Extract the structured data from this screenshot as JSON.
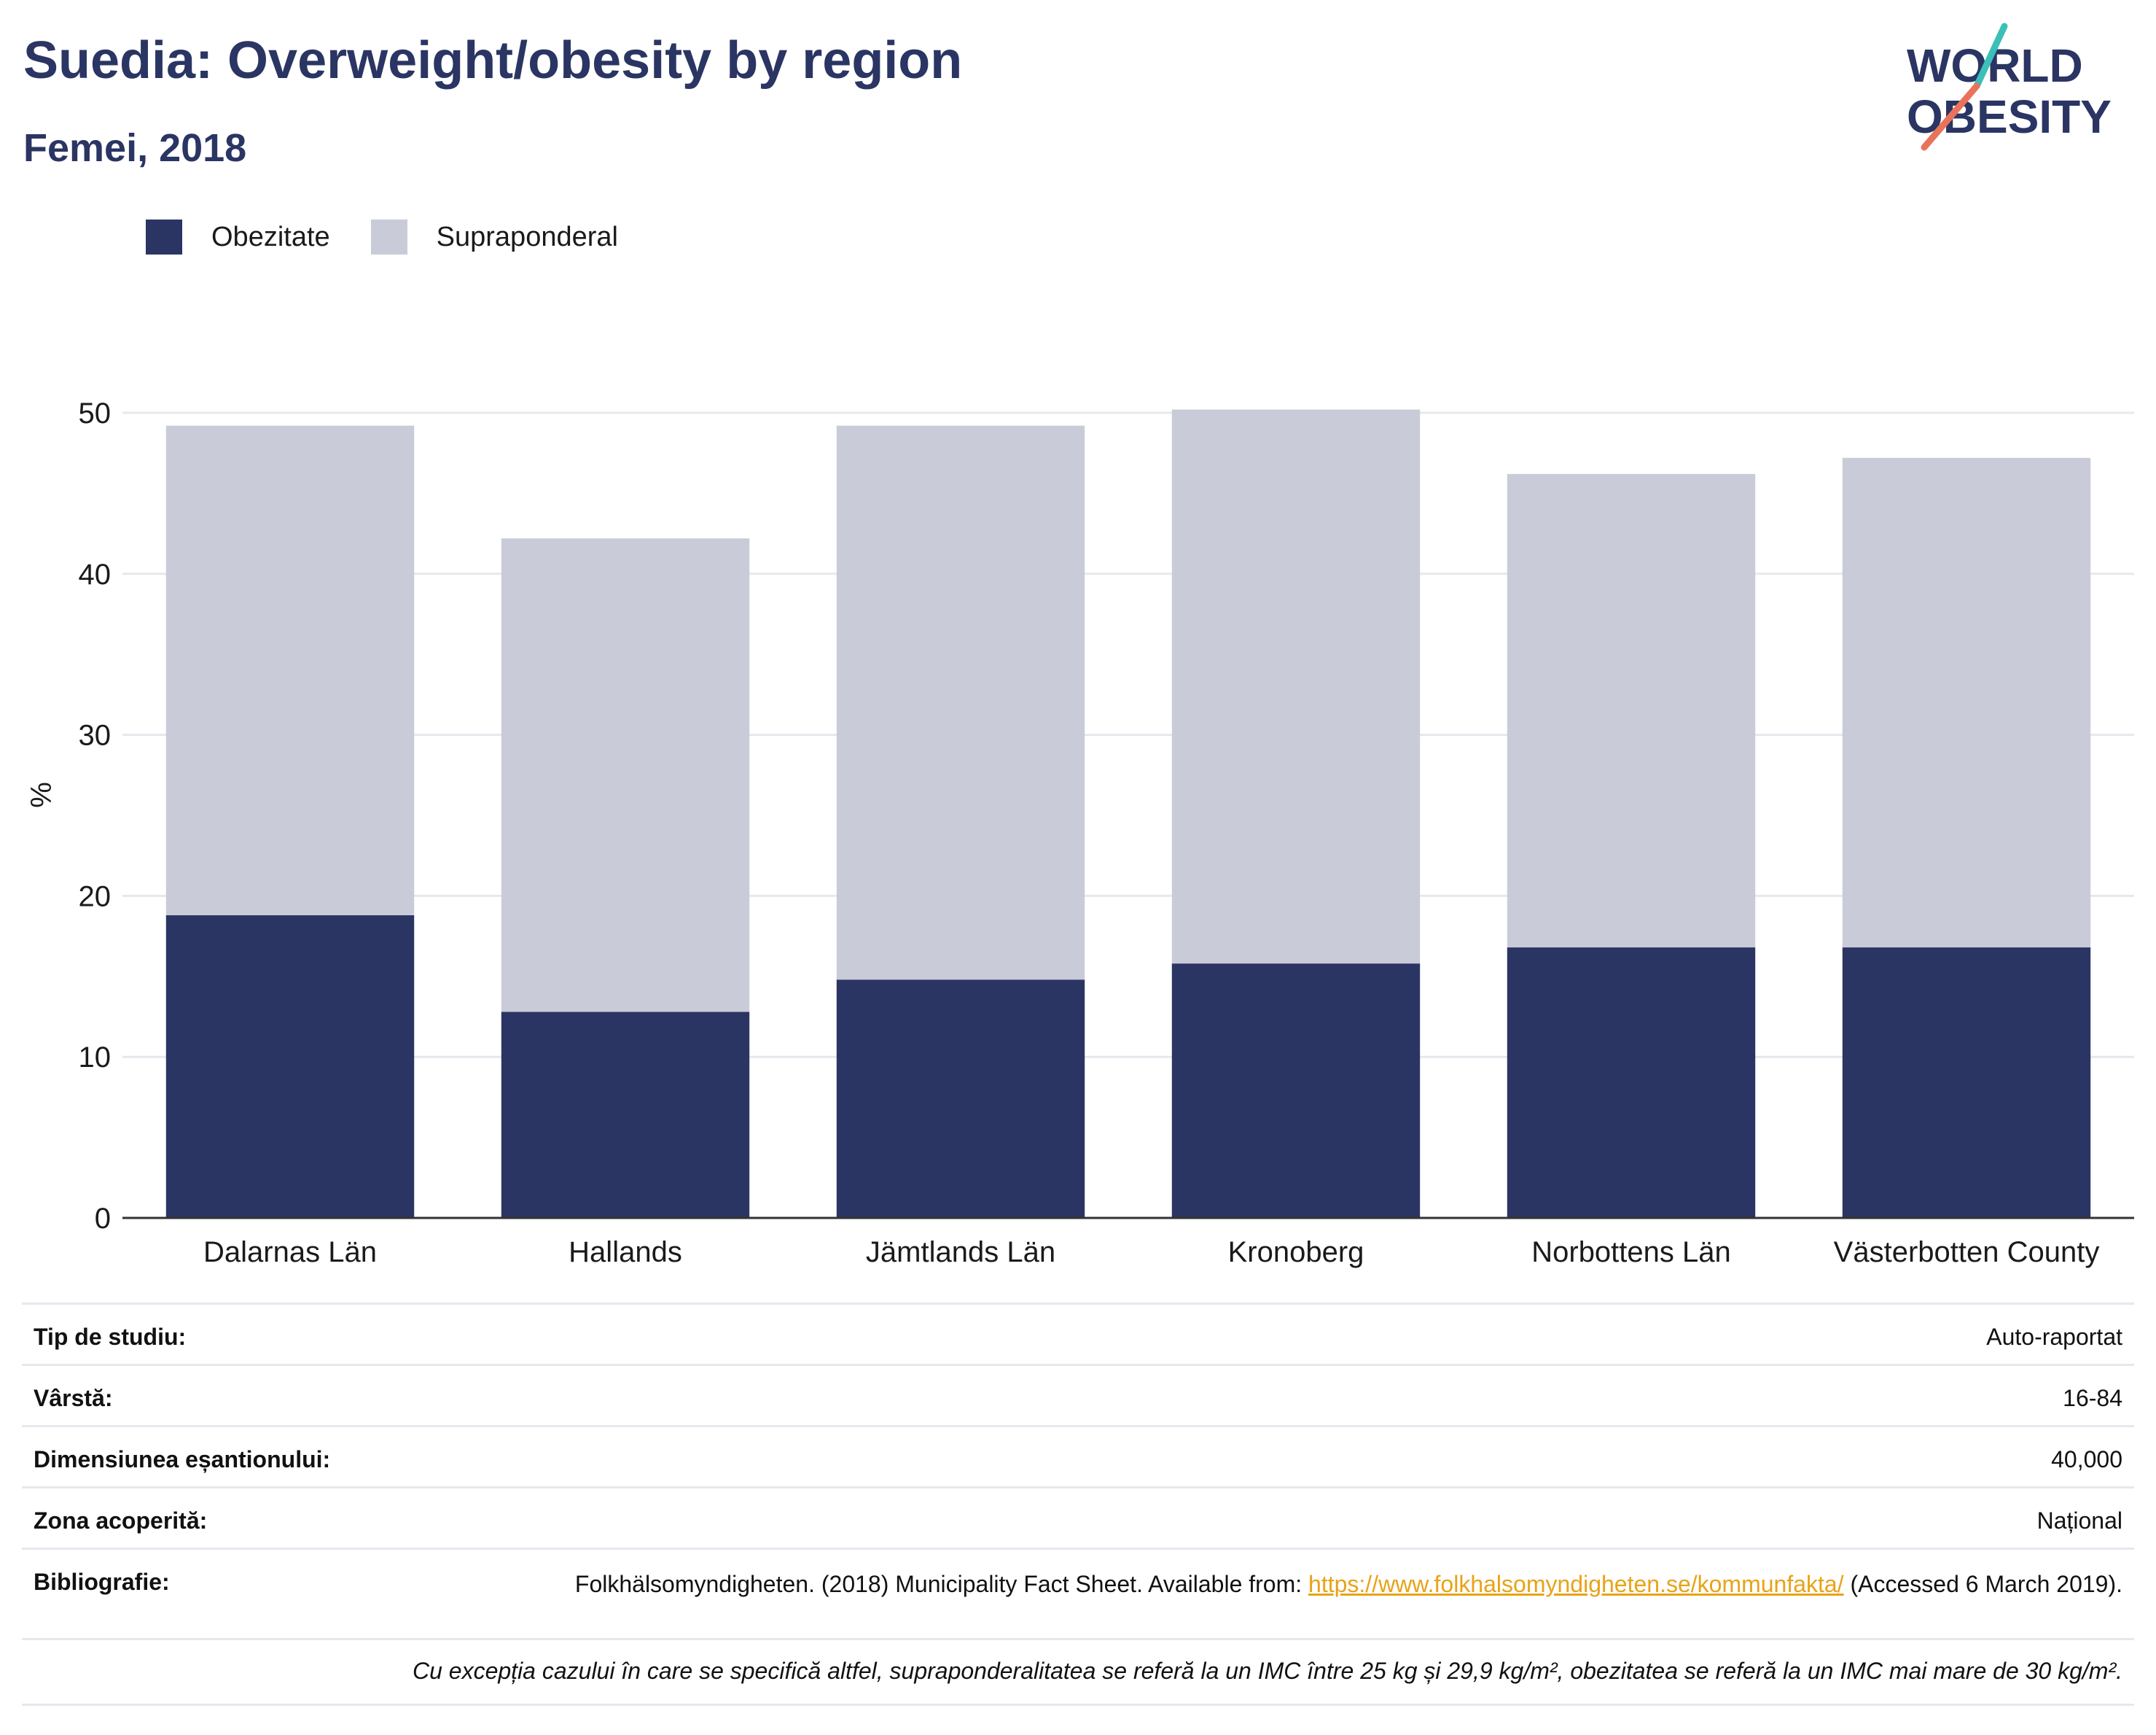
{
  "header": {
    "title": "Suedia: Overweight/obesity by region",
    "subtitle": "Femei, 2018"
  },
  "logo": {
    "line1": "WORLD",
    "line2": "OBESITY"
  },
  "colors": {
    "obesity": "#2a3563",
    "overweight": "#c9ccd8",
    "title": "#2a3563",
    "link": "#e8a317",
    "grid": "#e6e8ee"
  },
  "chart_data": {
    "type": "bar",
    "stacked": true,
    "categories": [
      "Dalarnas Län",
      "Hallands",
      "Jämtlands Län",
      "Kronoberg",
      "Norbottens Län",
      "Västerbotten County"
    ],
    "series": [
      {
        "name": "Obezitate",
        "values": [
          18.8,
          12.8,
          14.8,
          15.8,
          16.8,
          16.8
        ]
      },
      {
        "name": "Supraponderal",
        "values": [
          30.4,
          29.4,
          34.4,
          34.4,
          29.4,
          30.4
        ]
      }
    ],
    "ylabel": "%",
    "xlabel": "",
    "ylim": [
      0,
      50
    ],
    "yticks": [
      0,
      10,
      20,
      30,
      40,
      50
    ],
    "grid": true,
    "legend_position": "top-left"
  },
  "info": {
    "rows": [
      {
        "label": "Tip de studiu:",
        "value": "Auto-raportat"
      },
      {
        "label": "Vârstă:",
        "value": "16-84"
      },
      {
        "label": "Dimensiunea eșantionului:",
        "value": "40,000"
      },
      {
        "label": "Zona acoperită:",
        "value": "Național"
      }
    ],
    "bibliography": {
      "label": "Bibliografie:",
      "text_before": "Folkhälsomyndigheten. (2018) Municipality Fact Sheet. Available from: ",
      "link": "https://www.folkhalsomyndigheten.se/kommunfakta/",
      "text_after": " (Accessed 6 March 2019)."
    },
    "note": "Cu excepția cazului în care se specifică altfel, supraponderalitatea se referă la un IMC între 25 kg și 29,9 kg/m², obezitatea se referă la un IMC mai mare de 30 kg/m²."
  }
}
